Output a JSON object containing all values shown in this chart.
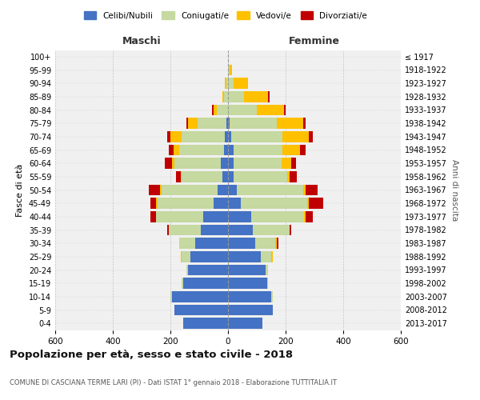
{
  "age_groups": [
    "0-4",
    "5-9",
    "10-14",
    "15-19",
    "20-24",
    "25-29",
    "30-34",
    "35-39",
    "40-44",
    "45-49",
    "50-54",
    "55-59",
    "60-64",
    "65-69",
    "70-74",
    "75-79",
    "80-84",
    "85-89",
    "90-94",
    "95-99",
    "100+"
  ],
  "birth_years": [
    "2013-2017",
    "2008-2012",
    "2003-2007",
    "1998-2002",
    "1993-1997",
    "1988-1992",
    "1983-1987",
    "1978-1982",
    "1973-1977",
    "1968-1972",
    "1963-1967",
    "1958-1962",
    "1953-1957",
    "1948-1952",
    "1943-1947",
    "1938-1942",
    "1933-1937",
    "1928-1932",
    "1923-1927",
    "1918-1922",
    "≤ 1917"
  ],
  "male": {
    "celibi": [
      155,
      185,
      195,
      155,
      140,
      130,
      115,
      95,
      85,
      50,
      35,
      20,
      25,
      15,
      10,
      5,
      0,
      0,
      0,
      0,
      0
    ],
    "coniugati": [
      0,
      0,
      5,
      5,
      5,
      30,
      55,
      110,
      165,
      195,
      195,
      140,
      160,
      155,
      150,
      100,
      40,
      15,
      5,
      0,
      0
    ],
    "vedovi": [
      0,
      0,
      0,
      0,
      0,
      5,
      0,
      0,
      0,
      5,
      5,
      5,
      10,
      20,
      40,
      35,
      10,
      5,
      5,
      0,
      0
    ],
    "divorziati": [
      0,
      0,
      0,
      0,
      0,
      0,
      0,
      5,
      20,
      20,
      40,
      15,
      25,
      15,
      10,
      5,
      5,
      0,
      0,
      0,
      0
    ]
  },
  "female": {
    "nubili": [
      120,
      155,
      150,
      135,
      130,
      115,
      95,
      85,
      80,
      45,
      30,
      20,
      20,
      20,
      10,
      5,
      0,
      0,
      0,
      0,
      0
    ],
    "coniugate": [
      0,
      0,
      5,
      5,
      10,
      35,
      70,
      130,
      185,
      230,
      230,
      185,
      165,
      170,
      180,
      165,
      100,
      55,
      20,
      5,
      0
    ],
    "vedove": [
      0,
      0,
      0,
      0,
      0,
      5,
      5,
      0,
      5,
      5,
      10,
      10,
      35,
      60,
      90,
      90,
      95,
      85,
      50,
      10,
      0
    ],
    "divorziate": [
      0,
      0,
      0,
      0,
      0,
      0,
      5,
      5,
      25,
      50,
      40,
      25,
      15,
      20,
      15,
      10,
      5,
      5,
      0,
      0,
      0
    ]
  },
  "color_celibi": "#4472C4",
  "color_coniugati": "#C5D9A0",
  "color_vedovi": "#FFC000",
  "color_divorziati": "#C00000",
  "xlim": 600,
  "title": "Popolazione per età, sesso e stato civile - 2018",
  "subtitle": "COMUNE DI CASCIANA TERME LARI (PI) - Dati ISTAT 1° gennaio 2018 - Elaborazione TUTTITALIA.IT",
  "ylabel_left": "Fasce di età",
  "ylabel_right": "Anni di nascita",
  "xlabel_maschi": "Maschi",
  "xlabel_femmine": "Femmine",
  "bg_color": "#f0f0f0",
  "grid_color": "#cccccc"
}
